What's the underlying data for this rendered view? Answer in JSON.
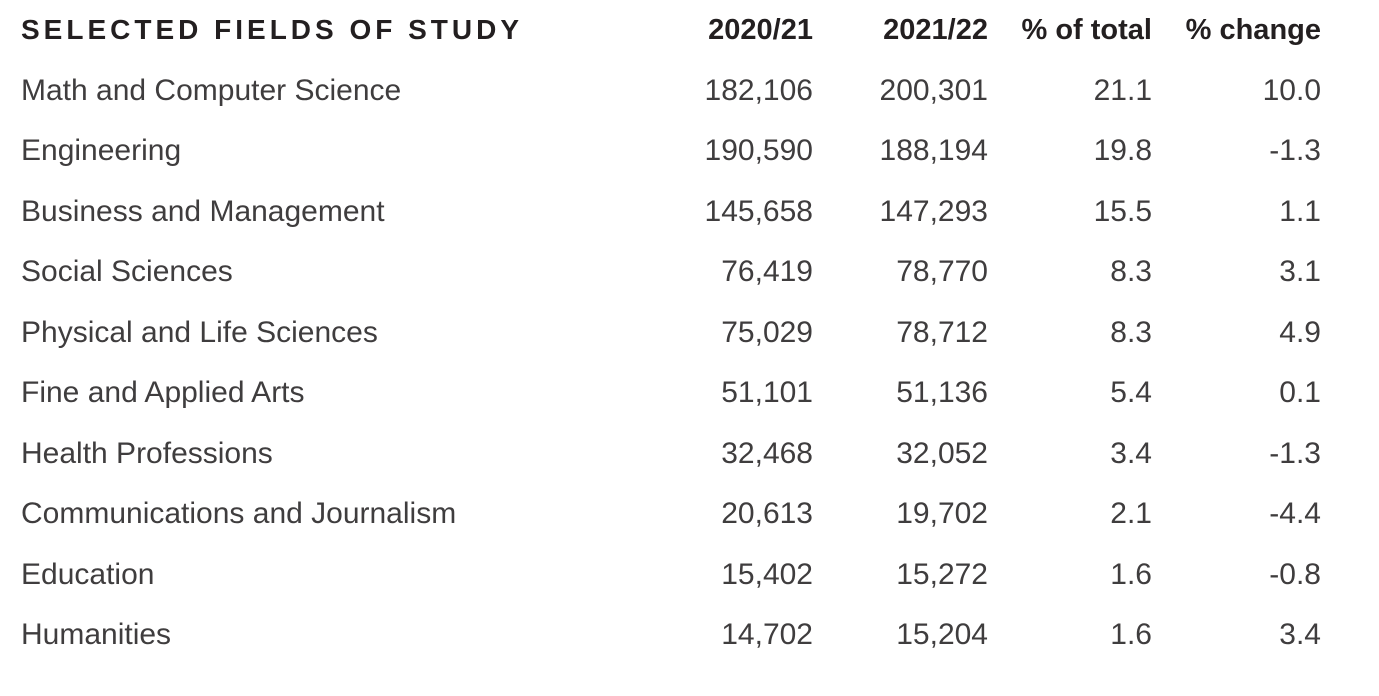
{
  "table": {
    "columns": [
      {
        "label": "SELECTED FIELDS OF STUDY",
        "align": "left"
      },
      {
        "label": "2020/21",
        "align": "right"
      },
      {
        "label": "2021/22",
        "align": "right"
      },
      {
        "label": "% of total",
        "align": "right"
      },
      {
        "label": "% change",
        "align": "right"
      }
    ],
    "rows": [
      [
        "Math and Computer Science",
        "182,106",
        "200,301",
        "21.1",
        "10.0"
      ],
      [
        "Engineering",
        "190,590",
        "188,194",
        "19.8",
        "-1.3"
      ],
      [
        "Business and Management",
        "145,658",
        "147,293",
        "15.5",
        "1.1"
      ],
      [
        "Social Sciences",
        "76,419",
        "78,770",
        "8.3",
        "3.1"
      ],
      [
        "Physical and Life Sciences",
        "75,029",
        "78,712",
        "8.3",
        "4.9"
      ],
      [
        "Fine and Applied Arts",
        "51,101",
        "51,136",
        "5.4",
        "0.1"
      ],
      [
        "Health Professions",
        "32,468",
        "32,052",
        "3.4",
        "-1.3"
      ],
      [
        "Communications and Journalism",
        "20,613",
        "19,702",
        "2.1",
        "-4.4"
      ],
      [
        "Education",
        "15,402",
        "15,272",
        "1.6",
        "-0.8"
      ],
      [
        "Humanities",
        "14,702",
        "15,204",
        "1.6",
        "3.4"
      ]
    ]
  },
  "colors": {
    "background": "#ffffff",
    "header_text": "#231f20",
    "body_text": "#3f3d3e"
  },
  "chart_data": {
    "type": "table",
    "title": "SELECTED FIELDS OF STUDY",
    "columns": [
      "SELECTED FIELDS OF STUDY",
      "2020/21",
      "2021/22",
      "% of total",
      "% change"
    ],
    "rows": [
      {
        "field": "Math and Computer Science",
        "y2020_21": 182106,
        "y2021_22": 200301,
        "pct_of_total": 21.1,
        "pct_change": 10.0
      },
      {
        "field": "Engineering",
        "y2020_21": 190590,
        "y2021_22": 188194,
        "pct_of_total": 19.8,
        "pct_change": -1.3
      },
      {
        "field": "Business and Management",
        "y2020_21": 145658,
        "y2021_22": 147293,
        "pct_of_total": 15.5,
        "pct_change": 1.1
      },
      {
        "field": "Social Sciences",
        "y2020_21": 76419,
        "y2021_22": 78770,
        "pct_of_total": 8.3,
        "pct_change": 3.1
      },
      {
        "field": "Physical and Life Sciences",
        "y2020_21": 75029,
        "y2021_22": 78712,
        "pct_of_total": 8.3,
        "pct_change": 4.9
      },
      {
        "field": "Fine and Applied Arts",
        "y2020_21": 51101,
        "y2021_22": 51136,
        "pct_of_total": 5.4,
        "pct_change": 0.1
      },
      {
        "field": "Health Professions",
        "y2020_21": 32468,
        "y2021_22": 32052,
        "pct_of_total": 3.4,
        "pct_change": -1.3
      },
      {
        "field": "Communications and Journalism",
        "y2020_21": 20613,
        "y2021_22": 19702,
        "pct_of_total": 2.1,
        "pct_change": -4.4
      },
      {
        "field": "Education",
        "y2020_21": 15402,
        "y2021_22": 15272,
        "pct_of_total": 1.6,
        "pct_change": -0.8
      },
      {
        "field": "Humanities",
        "y2020_21": 14702,
        "y2021_22": 15204,
        "pct_of_total": 1.6,
        "pct_change": 3.4
      }
    ]
  }
}
